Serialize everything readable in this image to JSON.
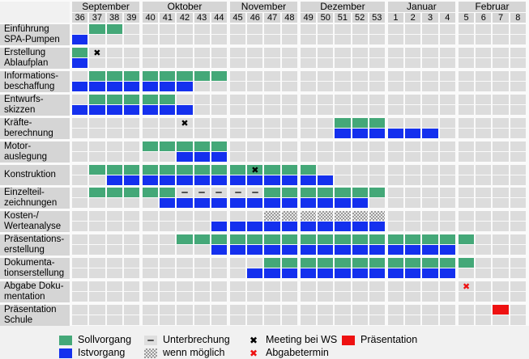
{
  "chart_data": {
    "type": "gantt",
    "title": "",
    "time_axis": "calendar weeks",
    "months": [
      {
        "name": "September",
        "weeks": [
          36,
          37,
          38,
          39
        ]
      },
      {
        "name": "Oktober",
        "weeks": [
          40,
          41,
          42,
          43,
          44
        ]
      },
      {
        "name": "November",
        "weeks": [
          45,
          46,
          47,
          48
        ]
      },
      {
        "name": "Dezember",
        "weeks": [
          49,
          50,
          51,
          52,
          53
        ]
      },
      {
        "name": "Januar",
        "weeks": [
          1,
          2,
          3,
          4
        ]
      },
      {
        "name": "Februar",
        "weeks": [
          5,
          6,
          7,
          8
        ]
      }
    ],
    "rows": [
      {
        "label": [
          "Einführung",
          "SPA-Pumpen"
        ],
        "soll": [
          [
            37,
            38,
            "soll"
          ]
        ],
        "ist": [
          [
            36,
            36,
            "ist"
          ]
        ],
        "marks": []
      },
      {
        "label": [
          "Erstellung",
          "Ablaufplan"
        ],
        "soll": [
          [
            36,
            36,
            "soll"
          ]
        ],
        "ist": [
          [
            36,
            36,
            "ist"
          ]
        ],
        "marks": [
          {
            "week": 37,
            "kind": "meeting"
          }
        ]
      },
      {
        "label": [
          "Informations-",
          "beschaffung"
        ],
        "soll": [
          [
            37,
            44,
            "soll"
          ]
        ],
        "ist": [
          [
            36,
            42,
            "ist"
          ]
        ],
        "marks": []
      },
      {
        "label": [
          "Entwurfs-",
          "skizzen"
        ],
        "soll": [
          [
            37,
            41,
            "soll"
          ]
        ],
        "ist": [
          [
            36,
            42,
            "ist"
          ]
        ],
        "marks": []
      },
      {
        "label": [
          "Kräfte-",
          "berechnung"
        ],
        "soll": [
          [
            51,
            53,
            "soll"
          ]
        ],
        "ist": [
          [
            51,
            3,
            "ist"
          ]
        ],
        "marks": [
          {
            "week": 42,
            "kind": "meeting"
          }
        ]
      },
      {
        "label": [
          "Motor-",
          "auslegung"
        ],
        "soll": [
          [
            40,
            44,
            "soll"
          ]
        ],
        "ist": [
          [
            42,
            44,
            "ist"
          ]
        ],
        "marks": []
      },
      {
        "label": [
          "Konstruktion"
        ],
        "soll": [
          [
            37,
            49,
            "soll"
          ]
        ],
        "ist": [
          [
            38,
            50,
            "ist"
          ]
        ],
        "marks": [
          {
            "week": 46,
            "kind": "meeting"
          }
        ]
      },
      {
        "label": [
          "Einzelteil-",
          "zeichnungen"
        ],
        "soll": [
          [
            37,
            41,
            "soll"
          ],
          [
            42,
            46,
            "pause"
          ],
          [
            47,
            53,
            "soll"
          ]
        ],
        "ist": [
          [
            41,
            52,
            "ist"
          ]
        ],
        "marks": []
      },
      {
        "label": [
          "Kosten-/",
          "Werteanalyse"
        ],
        "soll": [
          [
            47,
            53,
            "maybe"
          ]
        ],
        "ist": [
          [
            44,
            53,
            "ist"
          ]
        ],
        "marks": []
      },
      {
        "label": [
          "Präsentations-",
          "erstellung"
        ],
        "soll": [
          [
            42,
            5,
            "soll"
          ]
        ],
        "ist": [
          [
            44,
            4,
            "ist"
          ]
        ],
        "marks": []
      },
      {
        "label": [
          "Dokumenta-",
          "tionserstellung"
        ],
        "soll": [
          [
            47,
            5,
            "soll"
          ]
        ],
        "ist": [
          [
            46,
            4,
            "ist"
          ]
        ],
        "marks": []
      },
      {
        "label": [
          "Abgabe Doku-",
          "mentation"
        ],
        "soll": [],
        "ist": [],
        "marks": [
          {
            "week": 5,
            "kind": "deadline"
          }
        ]
      },
      {
        "label": [
          "Präsentation",
          "Schule"
        ],
        "soll": [
          [
            7,
            7,
            "pres"
          ]
        ],
        "ist": [],
        "marks": []
      }
    ],
    "symbols": {
      "meeting": "✖",
      "deadline": "✖",
      "interruption": "–"
    },
    "colors": {
      "soll": "#44a878",
      "ist": "#1430ee",
      "pres": "#ee1111",
      "cellbg": "#dcdcdc",
      "panel": "#d5d5d5"
    },
    "legend": {
      "columns": [
        [
          {
            "kind": "soll",
            "label": "Sollvorgang"
          },
          {
            "kind": "ist",
            "label": "Istvorgang"
          }
        ],
        [
          {
            "kind": "pause",
            "label": "Unterbrechung"
          },
          {
            "kind": "maybe",
            "label": "wenn möglich"
          }
        ],
        [
          {
            "kind": "meeting",
            "label": "Meeting bei WS"
          },
          {
            "kind": "deadline",
            "label": "Abgabetermin"
          }
        ],
        [
          {
            "kind": "pres",
            "label": "Präsentation"
          }
        ]
      ]
    }
  }
}
